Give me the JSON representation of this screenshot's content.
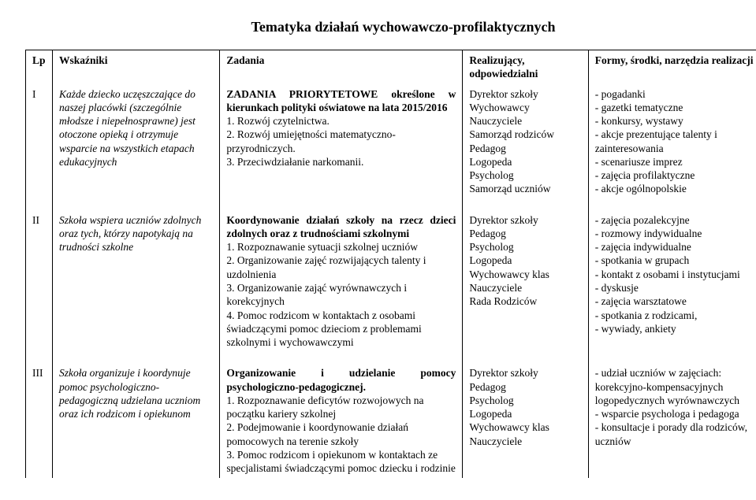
{
  "title": "Tematyka działań wychowawczo-profilaktycznych",
  "headers": {
    "lp": "Lp",
    "wskazniki": "Wskaźniki",
    "zadania": "Zadania",
    "realizujacy": "Realizujący, odpowiedzialni",
    "formy": "Formy, środki, narzędzia realizacji"
  },
  "rows": [
    {
      "lp": "I",
      "wskazniki": "Każde dziecko uczęszczające do naszej placówki (szczególnie młodsze i niepełnosprawne) jest otoczone opieką i otrzymuje wsparcie na wszystkich etapach edukacyjnych",
      "zadania_lead_bold": "ZADANIA PRIORYTETOWE określone w kierunkach polityki oświatowe na lata 2015/2016",
      "zadania_items": [
        "1. Rozwój czytelnictwa.",
        "2. Rozwój umiejętności matematyczno-przyrodniczych.",
        "3. Przeciwdziałanie narkomanii."
      ],
      "realizujacy": [
        "Dyrektor szkoły",
        "Wychowawcy",
        "Nauczyciele",
        "Samorząd rodziców",
        "Pedagog",
        "Logopeda",
        "Psycholog",
        "Samorząd uczniów"
      ],
      "formy": [
        "- pogadanki",
        "- gazetki tematyczne",
        "- konkursy, wystawy",
        "- akcje prezentujące talenty i zainteresowania",
        "- scenariusze imprez",
        "- zajęcia profilaktyczne",
        "- akcje ogólnopolskie"
      ]
    },
    {
      "lp": "II",
      "wskazniki": "Szkoła wspiera uczniów zdolnych oraz tych, którzy napotykają na trudności szkolne",
      "zadania_lead_bold": "Koordynowanie działań szkoły na rzecz dzieci zdolnych oraz z trudnościami szkolnymi",
      "zadania_items": [
        "1. Rozpoznawanie sytuacji szkolnej uczniów",
        "2. Organizowanie zajęć rozwijających talenty i uzdolnienia",
        "3. Organizowanie zająć wyrównawczych i korekcyjnych",
        "4. Pomoc rodzicom w kontaktach z osobami świadczącymi pomoc dzieciom z problemami szkolnymi i wychowawczymi"
      ],
      "realizujacy": [
        "Dyrektor szkoły",
        "Pedagog",
        "Psycholog",
        "Logopeda",
        "Wychowawcy klas",
        "Nauczyciele",
        "Rada Rodziców"
      ],
      "formy": [
        "- zajęcia pozalekcyjne",
        "- rozmowy indywidualne",
        "- zajęcia indywidualne",
        "- spotkania w grupach",
        "- kontakt z osobami i instytucjami",
        "- dyskusje",
        "- zajęcia warsztatowe",
        "- spotkania z rodzicami,",
        "- wywiady, ankiety"
      ]
    },
    {
      "lp": "III",
      "wskazniki": "Szkoła organizuje i koordynuje pomoc psychologiczno-pedagogiczną udzielana uczniom oraz ich rodzicom i opiekunom",
      "zadania_lead_bold": "Organizowanie i udzielanie pomocy psychologiczno-pedagogicznej.",
      "zadania_items": [
        "1. Rozpoznawanie deficytów rozwojowych na początku kariery szkolnej",
        "2. Podejmowanie i koordynowanie działań pomocowych na terenie szkoły",
        "3. Pomoc rodzicom i opiekunom w kontaktach ze specjalistami świadczącymi pomoc dziecku i rodzinie"
      ],
      "realizujacy": [
        "Dyrektor szkoły",
        "Pedagog",
        "Psycholog",
        "Logopeda",
        "Wychowawcy klas",
        "Nauczyciele"
      ],
      "formy": [
        "- udział uczniów w zajęciach: korekcyjno-kompensacyjnych logopedycznych wyrównawczych",
        "- wsparcie psychologa i pedagoga",
        "- konsultacje i porady dla rodziców, uczniów"
      ]
    }
  ]
}
